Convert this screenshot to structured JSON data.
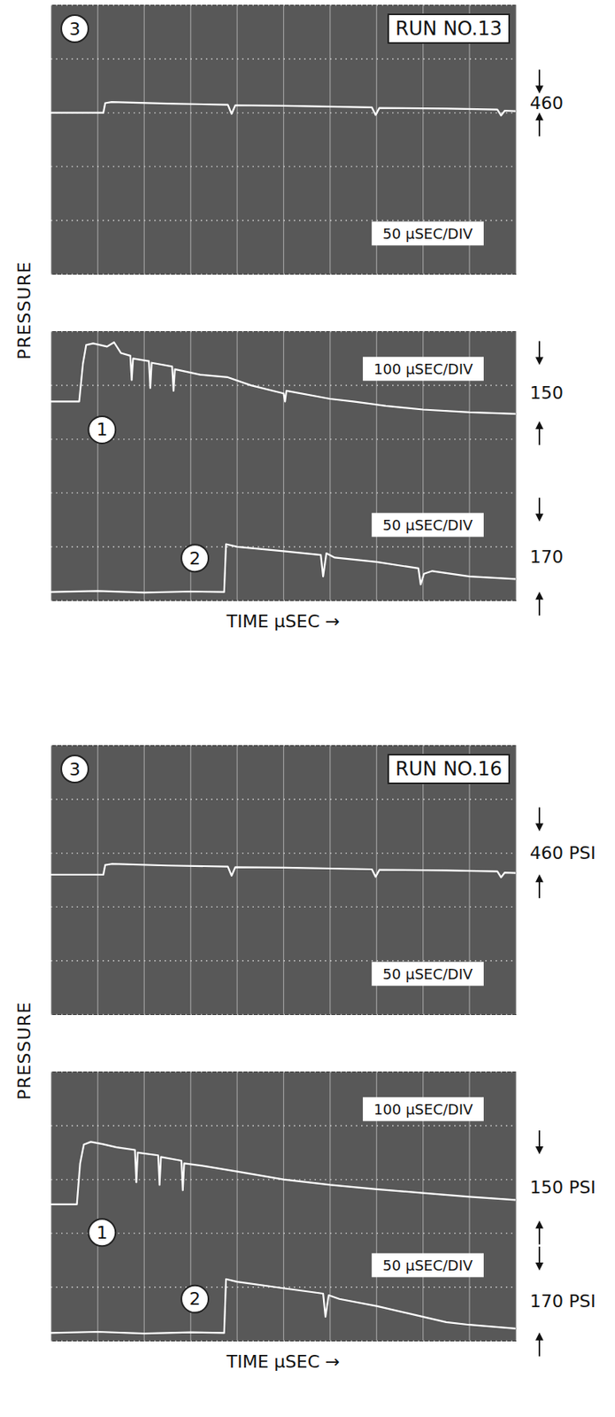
{
  "chart_data": [
    {
      "type": "line",
      "title": "RUN NO.13",
      "y_label": "PRESSURE",
      "xlim": [
        0,
        10
      ],
      "ylim": [
        0,
        5
      ],
      "xticks": [
        0,
        1,
        2,
        3,
        4,
        5,
        6,
        7,
        8,
        9,
        10
      ],
      "yticks": [
        0,
        1,
        2,
        3,
        4,
        5
      ],
      "grid": true,
      "tick_labels": false,
      "series": [
        {
          "name": "3",
          "color": "#ffffff",
          "sweep": "50 µSEC/DIV",
          "scale_label": "460",
          "scale_span": [
            3.0,
            3.35
          ],
          "x": [
            0,
            1.12,
            1.16,
            1.3,
            2.5,
            3.8,
            3.88,
            3.96,
            5,
            6.9,
            6.98,
            7.06,
            8.5,
            9.6,
            9.68,
            9.76,
            10
          ],
          "values": [
            3.0,
            3.0,
            3.18,
            3.2,
            3.17,
            3.15,
            2.98,
            3.14,
            3.13,
            3.1,
            2.96,
            3.09,
            3.08,
            3.06,
            2.95,
            3.04,
            3.03
          ]
        }
      ]
    },
    {
      "type": "line",
      "x_label": "TIME µSEC →",
      "xlim": [
        0,
        10
      ],
      "ylim": [
        0,
        5
      ],
      "xticks": [
        0,
        1,
        2,
        3,
        4,
        5,
        6,
        7,
        8,
        9,
        10
      ],
      "yticks": [
        0,
        1,
        2,
        3,
        4,
        5
      ],
      "grid": true,
      "tick_labels": false,
      "series": [
        {
          "name": "1",
          "color": "#ffffff",
          "sweep": "100 µSEC/DIV",
          "scale_label": "150",
          "scale_span": [
            3.33,
            4.37
          ],
          "x": [
            0,
            0.6,
            0.68,
            0.75,
            0.9,
            1.2,
            1.35,
            1.5,
            1.7,
            1.73,
            1.76,
            2.1,
            2.13,
            2.16,
            2.6,
            2.63,
            2.66,
            3.2,
            3.8,
            4.3,
            5.0,
            5.03,
            5.06,
            6.0,
            6.5,
            7.2,
            8.0,
            9.0,
            10
          ],
          "values": [
            3.7,
            3.7,
            4.4,
            4.75,
            4.78,
            4.72,
            4.8,
            4.6,
            4.55,
            4.1,
            4.5,
            4.45,
            3.95,
            4.42,
            4.35,
            3.9,
            4.3,
            4.2,
            4.15,
            4.0,
            3.85,
            3.7,
            3.9,
            3.75,
            3.7,
            3.62,
            3.55,
            3.5,
            3.47
          ]
        },
        {
          "name": "2",
          "color": "#ffffff",
          "sweep": "50 µSEC/DIV",
          "scale_label": "170",
          "scale_span": [
            0.16,
            1.46
          ],
          "x": [
            0,
            1,
            2,
            3,
            3.72,
            3.76,
            4.0,
            5.0,
            5.8,
            5.85,
            5.92,
            6.1,
            7.0,
            7.9,
            7.95,
            8.02,
            8.2,
            9.0,
            10
          ],
          "values": [
            0.16,
            0.18,
            0.15,
            0.17,
            0.16,
            1.05,
            1.0,
            0.92,
            0.85,
            0.45,
            0.88,
            0.8,
            0.72,
            0.6,
            0.3,
            0.5,
            0.55,
            0.45,
            0.4
          ]
        }
      ]
    },
    {
      "type": "line",
      "title": "RUN NO.16",
      "y_label": "PRESSURE",
      "xlim": [
        0,
        10
      ],
      "ylim": [
        0,
        5
      ],
      "xticks": [
        0,
        1,
        2,
        3,
        4,
        5,
        6,
        7,
        8,
        9,
        10
      ],
      "yticks": [
        0,
        1,
        2,
        3,
        4,
        5
      ],
      "grid": true,
      "tick_labels": false,
      "series": [
        {
          "name": "3",
          "color": "#ffffff",
          "sweep": "50 µSEC/DIV",
          "scale_label": "460 PSI",
          "scale_span": [
            2.6,
            3.4
          ],
          "x": [
            0,
            1.12,
            1.16,
            1.3,
            2.5,
            3.8,
            3.88,
            3.96,
            5,
            6.9,
            6.98,
            7.06,
            8.5,
            9.6,
            9.68,
            9.76,
            10
          ],
          "values": [
            2.6,
            2.6,
            2.78,
            2.8,
            2.77,
            2.75,
            2.58,
            2.74,
            2.73,
            2.7,
            2.56,
            2.69,
            2.68,
            2.66,
            2.55,
            2.64,
            2.63
          ]
        }
      ]
    },
    {
      "type": "line",
      "x_label": "TIME µSEC →",
      "xlim": [
        0,
        10
      ],
      "ylim": [
        0,
        5
      ],
      "xticks": [
        0,
        1,
        2,
        3,
        4,
        5,
        6,
        7,
        8,
        9,
        10
      ],
      "yticks": [
        0,
        1,
        2,
        3,
        4,
        5
      ],
      "grid": true,
      "tick_labels": false,
      "series": [
        {
          "name": "1",
          "color": "#ffffff",
          "sweep": "100 µSEC/DIV",
          "scale_label": "150 PSI",
          "scale_span": [
            2.23,
            3.46
          ],
          "x": [
            0,
            0.55,
            0.62,
            0.7,
            0.85,
            1.1,
            1.4,
            1.8,
            1.83,
            1.86,
            2.3,
            2.33,
            2.36,
            2.8,
            2.83,
            2.86,
            3.3,
            4.0,
            5.0,
            6.0,
            7.0,
            8.0,
            9.0,
            10
          ],
          "values": [
            2.54,
            2.54,
            3.3,
            3.65,
            3.7,
            3.66,
            3.6,
            3.55,
            2.95,
            3.5,
            3.45,
            2.9,
            3.42,
            3.35,
            2.8,
            3.3,
            3.25,
            3.15,
            3.0,
            2.9,
            2.82,
            2.75,
            2.68,
            2.62
          ]
        },
        {
          "name": "2",
          "color": "#ffffff",
          "sweep": "50 µSEC/DIV",
          "scale_label": "170 PSI",
          "scale_span": [
            0.15,
            1.3
          ],
          "x": [
            0,
            1,
            2,
            3,
            3.72,
            3.76,
            4.0,
            5.0,
            5.85,
            5.9,
            5.97,
            6.2,
            7.0,
            8.0,
            8.5,
            9.0,
            10
          ],
          "values": [
            0.15,
            0.17,
            0.14,
            0.16,
            0.15,
            1.15,
            1.1,
            0.98,
            0.88,
            0.45,
            0.85,
            0.78,
            0.65,
            0.45,
            0.35,
            0.3,
            0.23
          ]
        }
      ]
    }
  ]
}
